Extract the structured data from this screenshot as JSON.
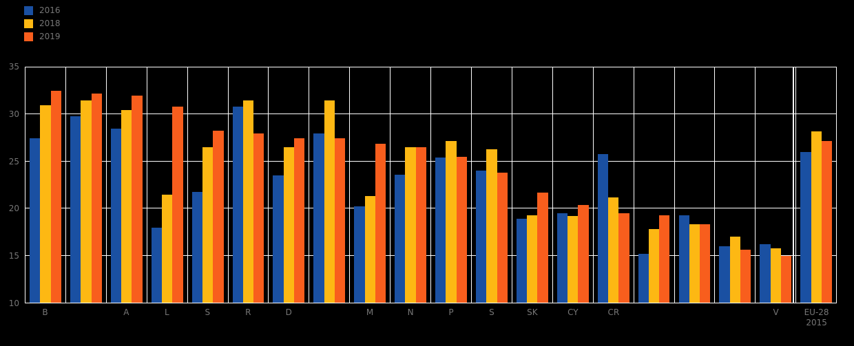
{
  "chart_data": {
    "type": "bar",
    "title": "",
    "xlabel": "",
    "ylabel": "",
    "ylim": [
      10,
      35
    ],
    "yticks": [
      10,
      15,
      20,
      25,
      30,
      35
    ],
    "grid": true,
    "legend_position": "top-left",
    "plot_background": "#000000",
    "gridline_color": "#ffffff",
    "tick_label_color": "#767676",
    "categories": [
      "B",
      "",
      "A",
      "L",
      "S",
      "R",
      "D",
      "",
      "M",
      "N",
      "P",
      "S",
      "SK",
      "CY",
      "CR",
      "",
      "",
      "",
      "V",
      "EU-28"
    ],
    "category_sublabels": [
      "",
      "",
      "",
      "",
      "",
      "",
      "",
      "",
      "",
      "",
      "",
      "",
      "",
      "",
      "",
      "",
      "",
      "",
      "",
      "2015"
    ],
    "separator_before_category": "EU-28",
    "series": [
      {
        "name": "2016",
        "color": "#1a50a2",
        "values": [
          27.5,
          29.8,
          28.5,
          18.0,
          21.8,
          30.8,
          23.5,
          28.0,
          20.2,
          23.6,
          25.4,
          24.0,
          18.9,
          19.5,
          25.8,
          15.2,
          19.3,
          16.0,
          16.2,
          26.0
        ]
      },
      {
        "name": "2018",
        "color": "#fdb813",
        "values": [
          31.0,
          31.5,
          30.5,
          21.5,
          26.5,
          31.5,
          26.5,
          31.5,
          21.3,
          26.5,
          27.2,
          26.3,
          19.3,
          19.2,
          21.2,
          17.8,
          18.3,
          17.0,
          15.8,
          28.2
        ]
      },
      {
        "name": "2019",
        "color": "#f85e1d",
        "values": [
          32.5,
          32.2,
          32.0,
          30.8,
          28.3,
          28.0,
          27.5,
          27.5,
          26.9,
          26.5,
          25.5,
          23.8,
          21.7,
          20.4,
          19.5,
          19.3,
          18.3,
          15.6,
          15.0,
          27.2
        ]
      }
    ]
  }
}
